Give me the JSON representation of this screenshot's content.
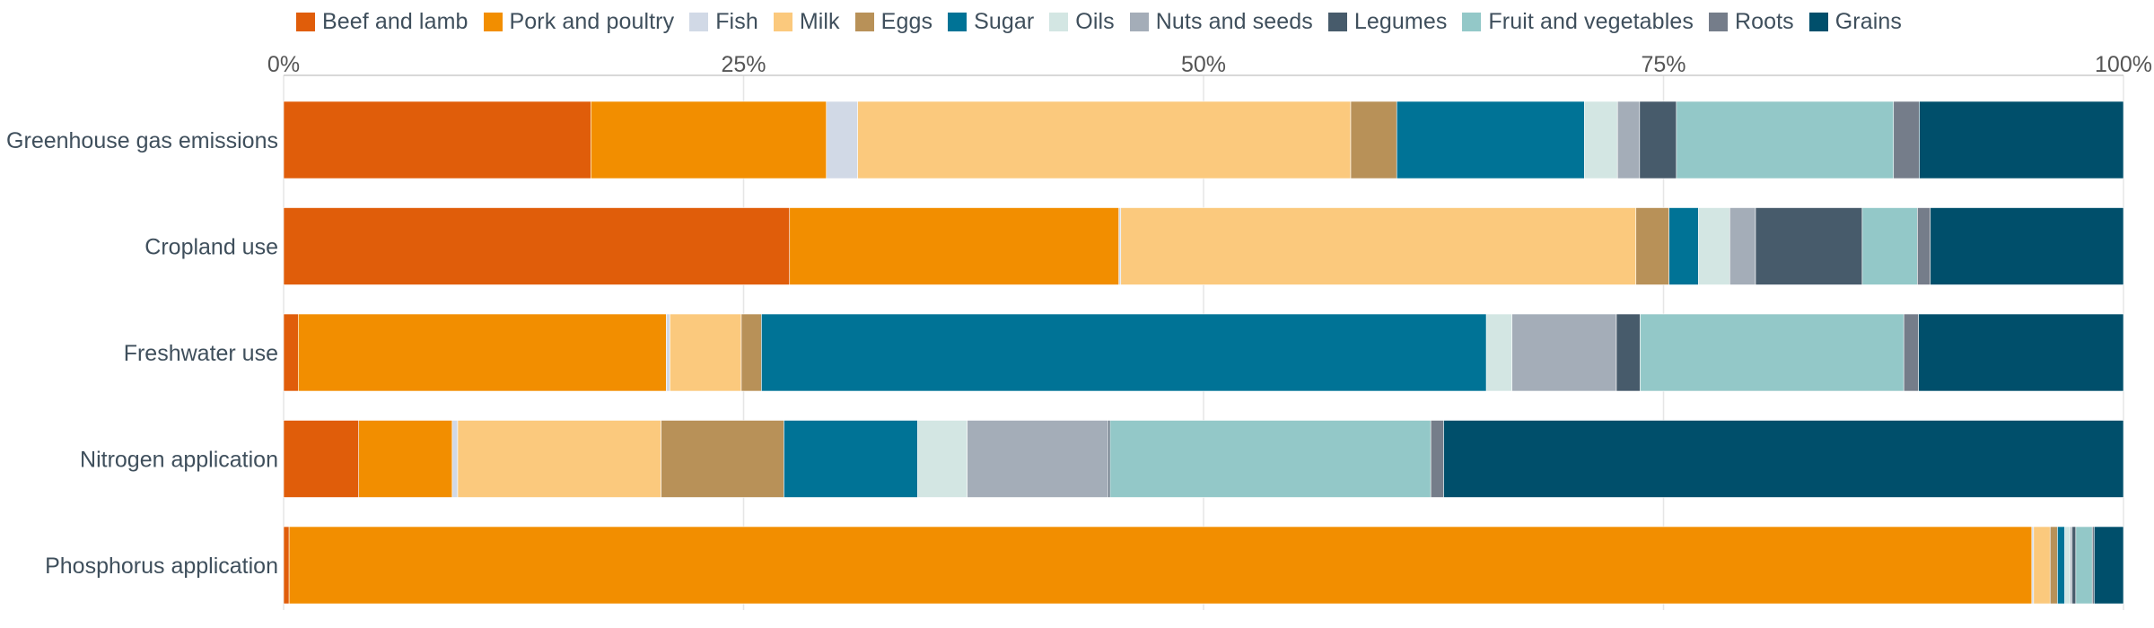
{
  "chart_data": {
    "type": "bar",
    "orientation": "horizontal",
    "stacked": "percent",
    "xlim": [
      0,
      100
    ],
    "x_ticks": [
      "0%",
      "25%",
      "50%",
      "75%",
      "100%"
    ],
    "grid": true,
    "legend_position": "top",
    "categories": [
      "Greenhouse gas emissions",
      "Cropland use",
      "Freshwater use",
      "Nitrogen application",
      "Phosphorus application"
    ],
    "series": [
      {
        "name": "Beef and lamb",
        "color": "#e05d0a",
        "values": [
          16.7,
          27.5,
          0.8,
          4.1,
          0.3
        ]
      },
      {
        "name": "Pork and poultry",
        "color": "#f28e00",
        "values": [
          12.8,
          17.9,
          20.1,
          5.1,
          95.0
        ]
      },
      {
        "name": "Fish",
        "color": "#d1d9e6",
        "values": [
          1.7,
          0.1,
          0.2,
          0.3,
          0.1
        ]
      },
      {
        "name": "Milk",
        "color": "#fbc97d",
        "values": [
          26.8,
          28.0,
          3.9,
          11.1,
          0.9
        ]
      },
      {
        "name": "Eggs",
        "color": "#b89158",
        "values": [
          2.5,
          1.8,
          1.1,
          6.7,
          0.4
        ]
      },
      {
        "name": "Sugar",
        "color": "#007396",
        "values": [
          10.2,
          1.6,
          39.6,
          7.3,
          0.4
        ]
      },
      {
        "name": "Oils",
        "color": "#d3e6e3",
        "values": [
          1.8,
          1.7,
          1.4,
          2.7,
          0.3
        ]
      },
      {
        "name": "Nuts and seeds",
        "color": "#a4adb8",
        "values": [
          1.2,
          1.4,
          5.7,
          7.7,
          0.1
        ]
      },
      {
        "name": "Legumes",
        "color": "#475b6b",
        "values": [
          2.0,
          5.8,
          1.3,
          0.1,
          0.2
        ]
      },
      {
        "name": "Fruit and vegetables",
        "color": "#93c8c8",
        "values": [
          11.8,
          3.0,
          14.4,
          17.5,
          0.9
        ]
      },
      {
        "name": "Roots",
        "color": "#757d8a",
        "values": [
          1.4,
          0.7,
          0.8,
          0.7,
          0.1
        ]
      },
      {
        "name": "Grains",
        "color": "#004f6b",
        "values": [
          11.1,
          10.5,
          11.2,
          37.1,
          1.6
        ]
      }
    ]
  }
}
